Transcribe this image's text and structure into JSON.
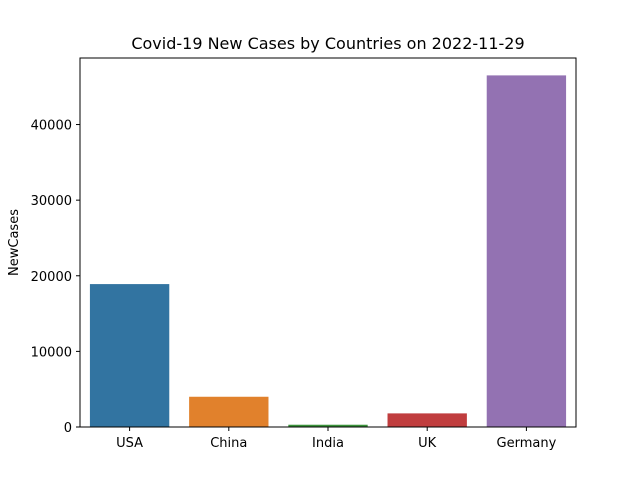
{
  "chart_data": {
    "type": "bar",
    "title": "Covid-19 New Cases by Countries on 2022-11-29",
    "xlabel": "",
    "ylabel": "NewCases",
    "categories": [
      "USA",
      "China",
      "India",
      "UK",
      "Germany"
    ],
    "values": [
      18900,
      4000,
      300,
      1800,
      46500
    ],
    "colors": [
      "#3274a1",
      "#e1812c",
      "#3a923a",
      "#c03d3e",
      "#9372b2"
    ],
    "ylim": [
      0,
      48800
    ],
    "yticks": [
      0,
      10000,
      20000,
      30000,
      40000
    ],
    "ytick_labels": [
      "0",
      "10000",
      "20000",
      "30000",
      "40000"
    ],
    "grid": false,
    "legend": false
  }
}
